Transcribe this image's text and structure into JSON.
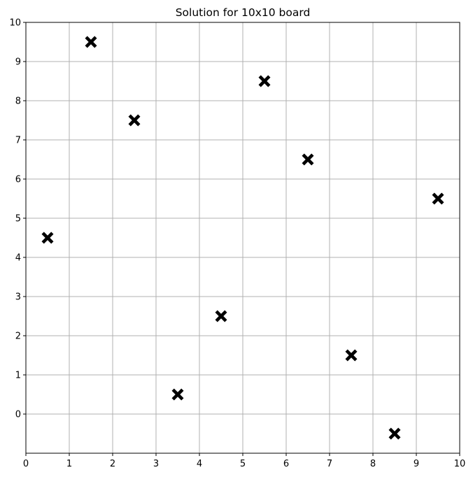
{
  "chart_data": {
    "type": "scatter",
    "title": "Solution for 10x10 board",
    "xlabel": "",
    "ylabel": "",
    "xlim": [
      0,
      10
    ],
    "ylim": [
      -1,
      10
    ],
    "x_ticks": [
      0,
      1,
      2,
      3,
      4,
      5,
      6,
      7,
      8,
      9,
      10
    ],
    "y_ticks": [
      0,
      1,
      2,
      3,
      4,
      5,
      6,
      7,
      8,
      9,
      10
    ],
    "grid": true,
    "marker": "X",
    "marker_color": "#000000",
    "grid_color": "#b0b0b0",
    "points": [
      {
        "x": 0.5,
        "y": 4.5
      },
      {
        "x": 1.5,
        "y": 9.5
      },
      {
        "x": 2.5,
        "y": 7.5
      },
      {
        "x": 3.5,
        "y": 0.5
      },
      {
        "x": 4.5,
        "y": 2.5
      },
      {
        "x": 5.5,
        "y": 8.5
      },
      {
        "x": 6.5,
        "y": 6.5
      },
      {
        "x": 7.5,
        "y": 1.5
      },
      {
        "x": 8.5,
        "y": -0.5
      },
      {
        "x": 9.5,
        "y": 5.5
      }
    ]
  }
}
